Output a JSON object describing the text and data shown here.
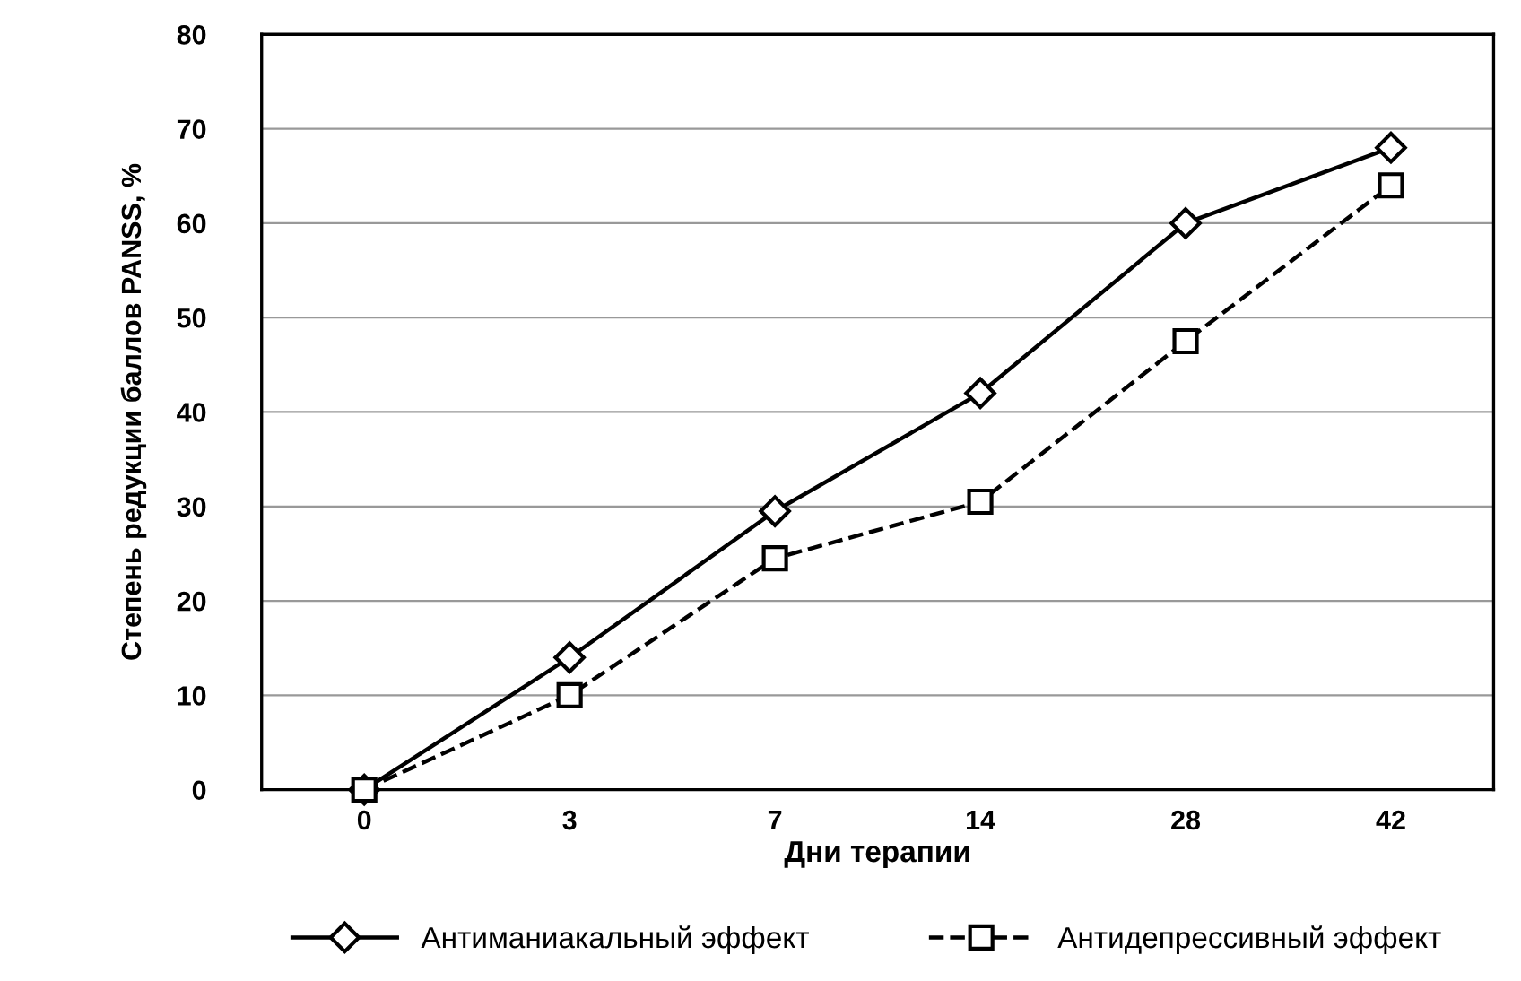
{
  "chart_data": {
    "type": "line",
    "xlabel": "Дни терапии",
    "ylabel": "Степень редукции баллов PANSS, %",
    "categories": [
      "0",
      "3",
      "7",
      "14",
      "28",
      "42"
    ],
    "series": [
      {
        "name": "Антиманиакальный эффект",
        "color": "#000000",
        "marker": "diamond",
        "line_style": "solid",
        "values": [
          0,
          14,
          29.5,
          42,
          60,
          68
        ]
      },
      {
        "name": "Антидепрессивный эффект",
        "color": "#000000",
        "marker": "square",
        "line_style": "dashed",
        "values": [
          0,
          10,
          24.5,
          30.5,
          47.5,
          64
        ]
      }
    ],
    "ylim": [
      0,
      80
    ],
    "yticks": [
      0,
      10,
      20,
      30,
      40,
      50,
      60,
      70,
      80
    ],
    "grid": "y",
    "legend": "bottom"
  }
}
